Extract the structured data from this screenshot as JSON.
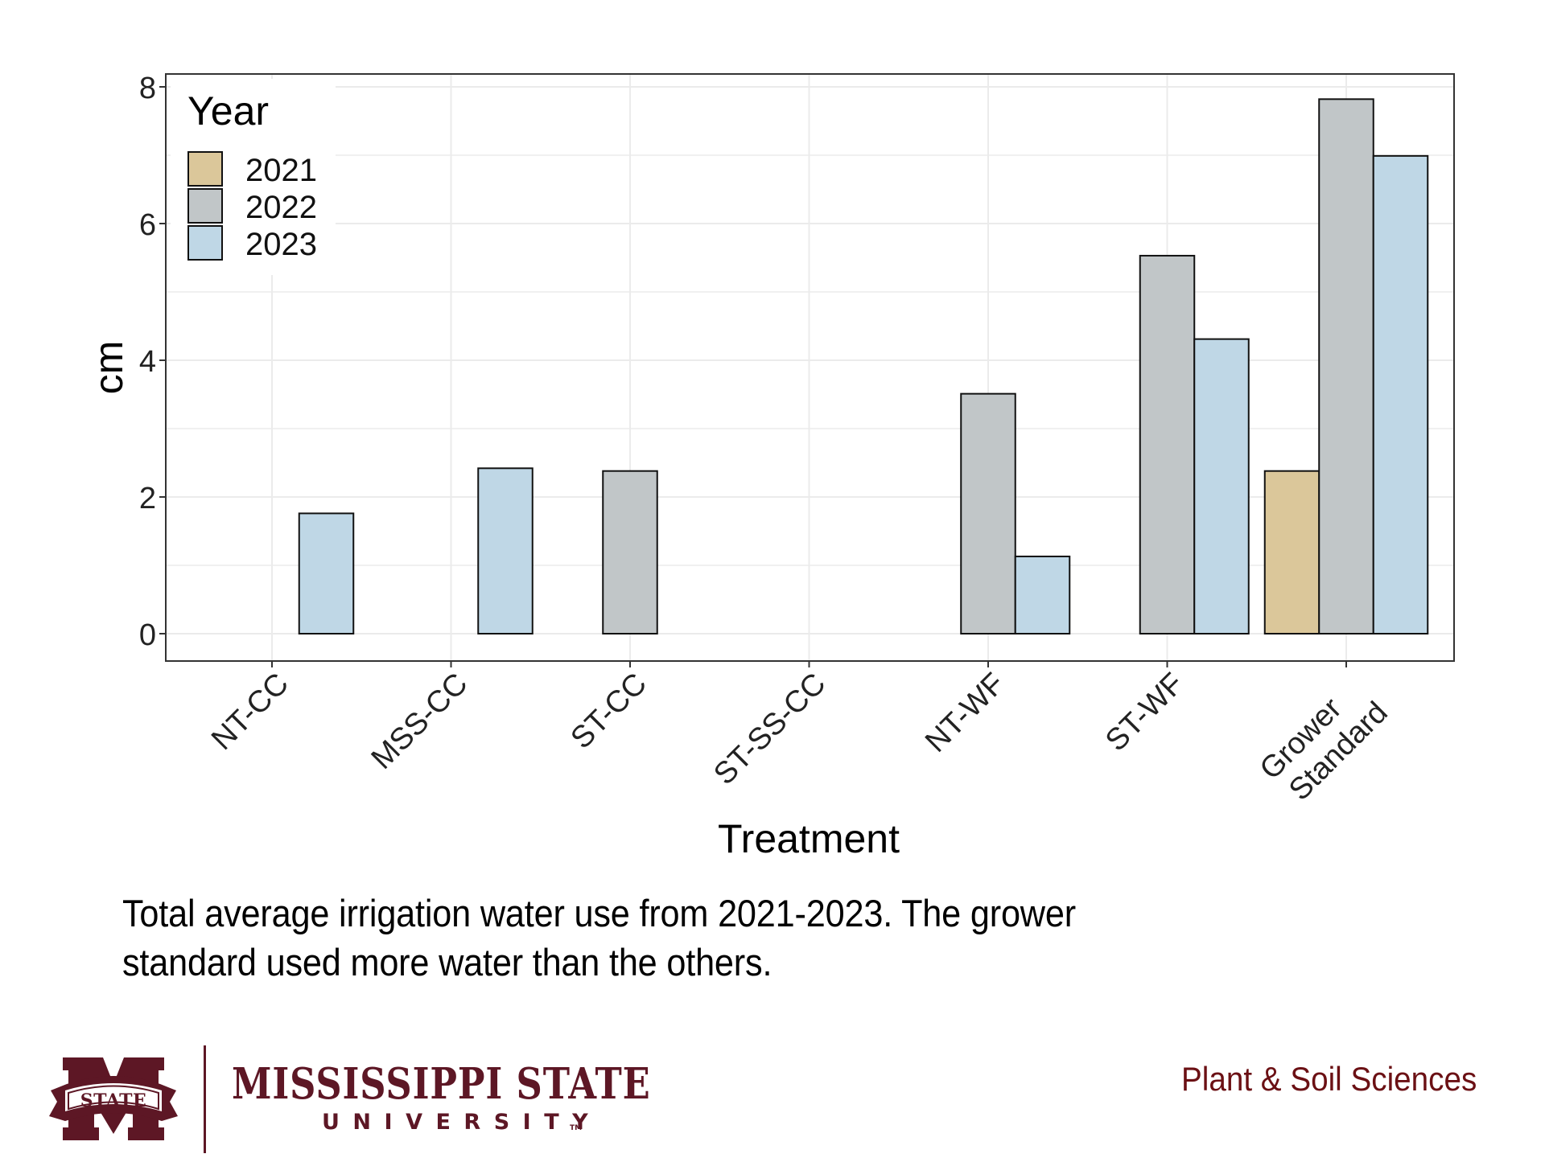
{
  "chart_data": {
    "type": "bar",
    "title": "",
    "xlabel": "Treatment",
    "ylabel": "cm",
    "ylim": [
      -0.4,
      8.2
    ],
    "yticks": [
      0,
      2,
      4,
      6,
      8
    ],
    "ytick_labels": [
      "0",
      "2",
      "4",
      "6",
      "8"
    ],
    "grid": true,
    "categories": [
      "NT-CC",
      "MSS-CC",
      "ST-CC",
      "ST-SS-CC",
      "NT-WF",
      "ST-WF",
      "Grower Standard"
    ],
    "category_labels": [
      [
        "NT-CC"
      ],
      [
        "MSS-CC"
      ],
      [
        "ST-CC"
      ],
      [
        "ST-SS-CC"
      ],
      [
        "NT-WF"
      ],
      [
        "ST-WF"
      ],
      [
        "Grower",
        "Standard"
      ]
    ],
    "series": [
      {
        "name": "2021",
        "color": "#dbc79a",
        "values": [
          0,
          0,
          0,
          0,
          0,
          0,
          2.38
        ]
      },
      {
        "name": "2022",
        "color": "#c1c6c8",
        "values": [
          0,
          0,
          2.38,
          0,
          3.51,
          5.53,
          7.82
        ]
      },
      {
        "name": "2023",
        "color": "#bfd7e6",
        "values": [
          1.76,
          2.42,
          0,
          0,
          1.13,
          4.31,
          6.99
        ]
      }
    ],
    "legend": {
      "title": "Year",
      "placement": "top-left",
      "entries": [
        "2021",
        "2022",
        "2023"
      ]
    }
  },
  "caption": {
    "line1": "Total average irrigation water use from 2021-2023. The grower",
    "line2": "standard used more water than the others."
  },
  "footer": {
    "university_name": "MISSISSIPPI STATE",
    "university_sub": "UNIVERSITY",
    "trademark": "TM",
    "logo_text": "STATE",
    "department": "Plant & Soil Sciences",
    "brand_color": "#5d1725",
    "department_color": "#6b1014"
  }
}
